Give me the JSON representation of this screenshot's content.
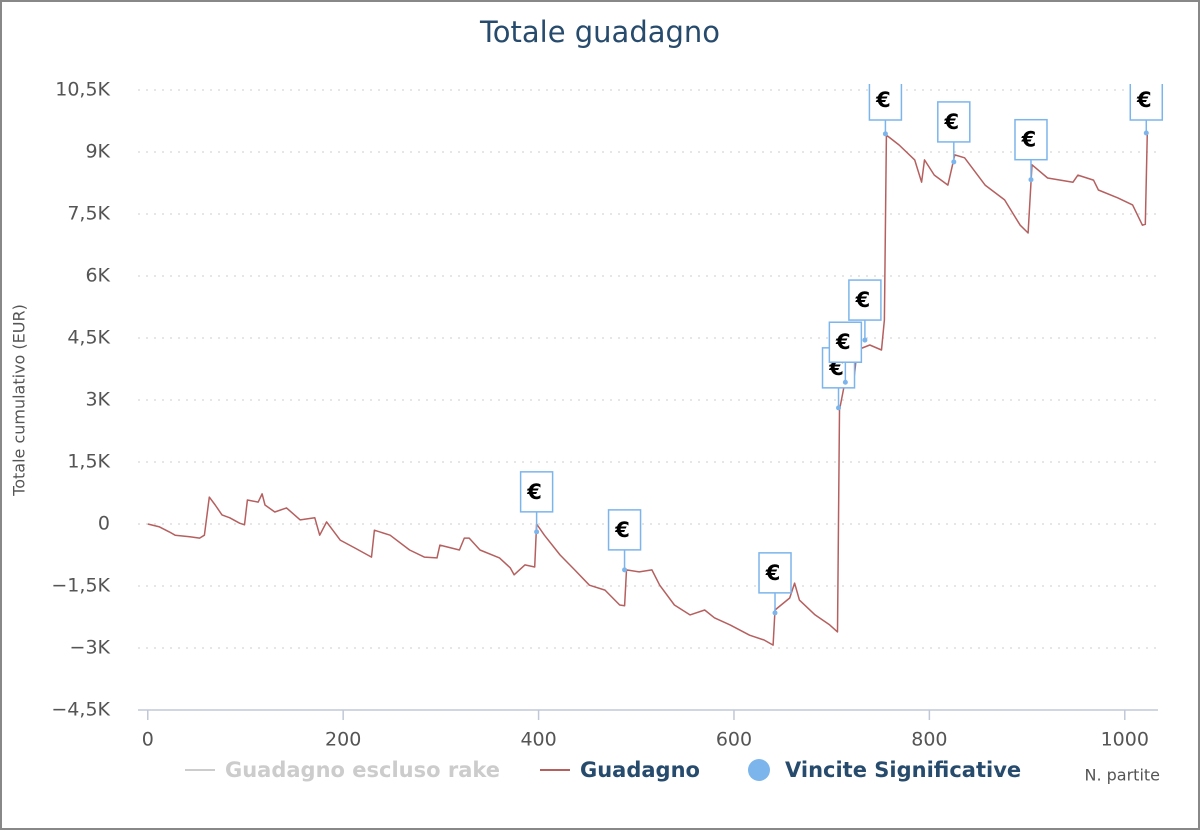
{
  "chart_data": {
    "type": "line",
    "title": "Totale guadagno",
    "y_label": "Totale cumulativo (EUR)",
    "x_label": "N. partite",
    "xlim": [
      -10,
      1034
    ],
    "xticks": [
      0,
      200,
      400,
      600,
      800,
      1000
    ],
    "ylim": [
      -4500,
      10500
    ],
    "yticks": [
      {
        "value": -4500,
        "label": "−4,5K"
      },
      {
        "value": -3000,
        "label": "−3K"
      },
      {
        "value": -1500,
        "label": "−1,5K"
      },
      0,
      {
        "value": 1500,
        "label": "1,5K"
      },
      {
        "value": 3000,
        "label": "3K"
      },
      {
        "value": 4500,
        "label": "4,5K"
      },
      {
        "value": 6000,
        "label": "6K"
      },
      {
        "value": 7500,
        "label": "7,5K"
      },
      {
        "value": 9000,
        "label": "9K"
      },
      {
        "value": 10500,
        "label": "10,5K"
      }
    ],
    "grid": true,
    "series": [
      {
        "name": "Guadagno escluso rake",
        "color": "#cccccc",
        "visible": false
      },
      {
        "name": "Guadagno",
        "color": "#b5605f",
        "visible": true,
        "x": [
          0,
          12,
          22,
          28,
          43,
          53,
          58,
          63,
          69,
          76,
          84,
          94,
          99,
          102,
          113,
          117,
          120,
          130,
          142,
          156,
          171,
          176,
          183,
          197,
          212,
          229,
          232,
          248,
          268,
          283,
          296,
          299,
          319,
          324,
          329,
          340,
          360,
          371,
          375,
          386,
          396,
          398,
          406,
          422,
          437,
          452,
          468,
          483,
          488,
          490,
          503,
          516,
          524,
          539,
          555,
          570,
          580,
          596,
          616,
          631,
          640,
          642,
          657,
          662,
          667,
          683,
          698,
          706,
          708,
          716,
          723,
          726,
          739,
          751,
          754,
          756,
          769,
          785,
          792,
          795,
          805,
          819,
          826,
          836,
          857,
          877,
          893,
          901,
          905,
          921,
          947,
          952,
          968,
          973,
          993,
          1008,
          1018,
          1021,
          1023
        ],
        "values": [
          0,
          -70,
          -190,
          -270,
          -310,
          -340,
          -270,
          650,
          460,
          220,
          150,
          20,
          -20,
          580,
          530,
          730,
          460,
          290,
          390,
          100,
          150,
          -270,
          50,
          -390,
          -580,
          -800,
          -150,
          -270,
          -630,
          -800,
          -820,
          -510,
          -630,
          -340,
          -340,
          -630,
          -820,
          -1060,
          -1230,
          -990,
          -1040,
          0,
          -270,
          -750,
          -1110,
          -1480,
          -1600,
          -1960,
          -1980,
          -1110,
          -1160,
          -1110,
          -1480,
          -1960,
          -2200,
          -2080,
          -2270,
          -2440,
          -2690,
          -2810,
          -2930,
          -2080,
          -1790,
          -1430,
          -1840,
          -2200,
          -2440,
          -2610,
          2760,
          3730,
          3530,
          4210,
          4330,
          4210,
          4940,
          9410,
          9170,
          8810,
          8270,
          8810,
          8440,
          8200,
          8930,
          8860,
          8200,
          7840,
          7230,
          7040,
          8690,
          8370,
          8270,
          8440,
          8320,
          8080,
          7890,
          7720,
          7230,
          7250,
          9460
        ]
      },
      {
        "name": "Vincite Significative",
        "color": "#7cb5ec",
        "visible": true,
        "marker": "flag",
        "flag_text": "€",
        "x": [
          398,
          488,
          642,
          707,
          714,
          734,
          755,
          825,
          904,
          1022
        ],
        "values": [
          -190,
          -1110,
          -2150,
          2810,
          3430,
          4450,
          9440,
          8760,
          8330,
          9460
        ]
      }
    ]
  }
}
